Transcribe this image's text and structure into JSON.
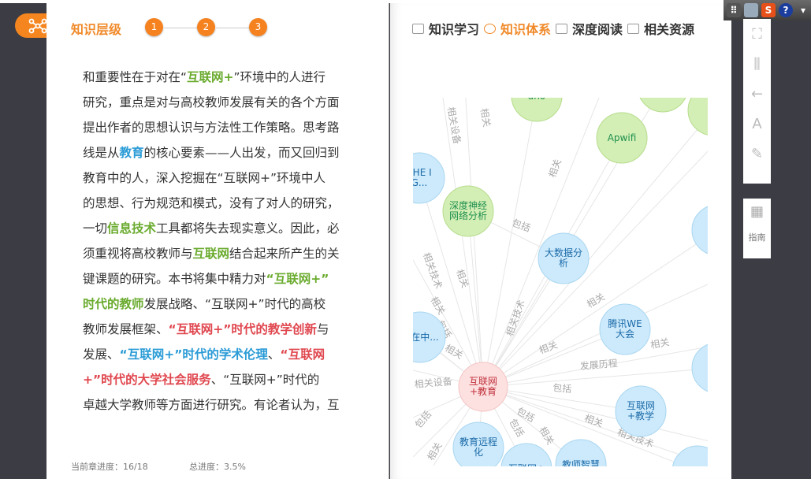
{
  "left_panel": {
    "title": "知识层级",
    "steps": [
      "1",
      "2",
      "3"
    ],
    "lines": [
      [
        {
          "t": "和重要性在于对在“"
        },
        {
          "t": "互联网+",
          "c": "green"
        },
        {
          "t": "”环境中的人进行"
        }
      ],
      [
        {
          "t": "研究，重点是对与高校教师发展有关的各个方面"
        }
      ],
      [
        {
          "t": "提出作者的思想认识与方法性工作策略。思考路"
        }
      ],
      [
        {
          "t": "线是从"
        },
        {
          "t": "教育",
          "c": "blue"
        },
        {
          "t": "的核心要素——人出发，而又回归到"
        }
      ],
      [
        {
          "t": "教育中的人，深入挖掘在“互联网+”环境中人"
        }
      ],
      [
        {
          "t": "的思想、行为规范和模式，没有了对人的研究，"
        }
      ],
      [
        {
          "t": "一切"
        },
        {
          "t": "信息技术",
          "c": "green"
        },
        {
          "t": "工具都将失去现实意义。因此，必"
        }
      ],
      [
        {
          "t": "须重视将高校教师与"
        },
        {
          "t": "互联网",
          "c": "green"
        },
        {
          "t": "结合起来所产生的关"
        }
      ],
      [
        {
          "t": "键课题的研究。本书将集中精力对"
        },
        {
          "t": "“互联网+”",
          "c": "green"
        }
      ],
      [
        {
          "t": "时代的教师",
          "c": "green"
        },
        {
          "t": "发展战略、“互联网+”时代的高校"
        }
      ],
      [
        {
          "t": "教师发展框架、"
        },
        {
          "t": "“互联网+”时代的教学创新",
          "c": "red"
        },
        {
          "t": "与"
        }
      ],
      [
        {
          "t": "发展、"
        },
        {
          "t": "“互联网+”时代的学术伦理",
          "c": "blue"
        },
        {
          "t": "、"
        },
        {
          "t": "“互联网",
          "c": "red"
        }
      ],
      [
        {
          "t": "+”时代的大学社会服务",
          "c": "red"
        },
        {
          "t": "、“互联网+”时代的"
        }
      ],
      [
        {
          "t": "卓越大学教师等方面进行研究。有论者认为，互"
        }
      ]
    ],
    "chapter_progress_label": "当前章进度：16/18",
    "total_progress_label": "总进度：3.5%"
  },
  "colors": {
    "green": "#6aab2e",
    "blue": "#2a9bd6",
    "red": "#e0474f",
    "accent": "#f5821e"
  },
  "tabs": [
    {
      "label": "知识学习",
      "icon": "book-icon"
    },
    {
      "label": "知识体系",
      "icon": "network-icon",
      "active": true
    },
    {
      "label": "深度阅读",
      "icon": "window-icon"
    },
    {
      "label": "相关资源",
      "icon": "stack-icon"
    }
  ],
  "graph": {
    "center": "互联网+教育",
    "nodes": [
      {
        "label": "ano",
        "type": "green"
      },
      {
        "label": "",
        "type": "green"
      },
      {
        "label": "",
        "type": "green"
      },
      {
        "label": "Apwifi",
        "type": "green"
      },
      {
        "label": "THE IG...",
        "type": "blue"
      },
      {
        "label": "深度神经网络分析",
        "type": "green"
      },
      {
        "label": "大数据分析",
        "type": "blue"
      },
      {
        "label": "在",
        "type": "blue"
      },
      {
        "label": "网在中...",
        "type": "blue"
      },
      {
        "label": "腾讯WE大会",
        "type": "blue"
      },
      {
        "label": "教",
        "type": "blue"
      },
      {
        "label": "互联网+教学",
        "type": "blue"
      },
      {
        "label": "教育远程化",
        "type": "blue"
      },
      {
        "label": "互联网+",
        "type": "blue"
      },
      {
        "label": "教师智慧",
        "type": "blue"
      },
      {
        "label": "",
        "type": "blue"
      }
    ],
    "edge_labels": [
      "相关设备",
      "相关",
      "相关",
      "包括",
      "相关技术",
      "相关",
      "相关技术",
      "相关",
      "包括",
      "相关",
      "相关",
      "相关",
      "发展历程",
      "相关",
      "相关设备",
      "包括",
      "包括",
      "包括",
      "包括",
      "相关",
      "相关",
      "相关技术",
      "相关"
    ]
  },
  "sidebar_tools": {
    "guide_label": "指南"
  }
}
